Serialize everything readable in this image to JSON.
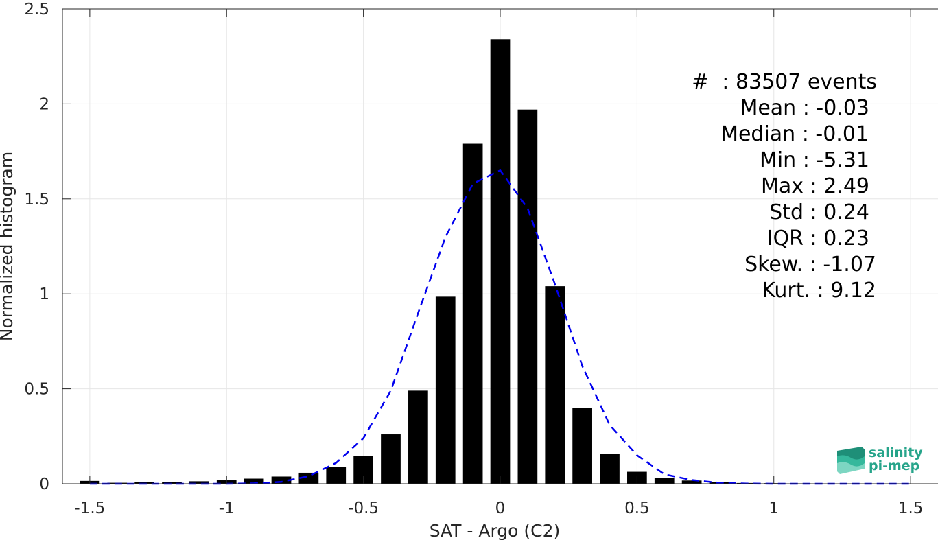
{
  "chart_data": {
    "type": "bar",
    "xlabel": "SAT - Argo (C2)",
    "ylabel": "Normalized histogram",
    "xlim": [
      -1.6,
      1.6
    ],
    "ylim": [
      0,
      2.5
    ],
    "grid": true,
    "x_ticks": [
      -1.5,
      -1,
      -0.5,
      0,
      0.5,
      1,
      1.5
    ],
    "x_tick_labels": [
      "-1.5",
      "-1",
      "-0.5",
      "0",
      "0.5",
      "1",
      "1.5"
    ],
    "y_ticks": [
      0,
      0.5,
      1,
      1.5,
      2,
      2.5
    ],
    "y_tick_labels": [
      "0",
      "0.5",
      "1",
      "1.5",
      "2",
      "2.5"
    ],
    "series": [
      {
        "type": "bar",
        "color": "#000000",
        "x": [
          -1.5,
          -1.4,
          -1.3,
          -1.2,
          -1.1,
          -1.0,
          -0.9,
          -0.8,
          -0.7,
          -0.6,
          -0.5,
          -0.4,
          -0.3,
          -0.2,
          -0.1,
          0.0,
          0.1,
          0.2,
          0.3,
          0.4,
          0.5,
          0.6,
          0.7,
          0.8,
          0.9,
          1.0,
          1.1,
          1.2,
          1.3,
          1.4,
          1.5
        ],
        "values": [
          0.015,
          0.005,
          0.008,
          0.01,
          0.013,
          0.018,
          0.027,
          0.038,
          0.058,
          0.088,
          0.147,
          0.26,
          0.49,
          0.985,
          1.79,
          2.34,
          1.97,
          1.04,
          0.4,
          0.158,
          0.063,
          0.032,
          0.017,
          0.008,
          0.004,
          0.003,
          0.002,
          0.001,
          0.001,
          0.001,
          0.001
        ]
      },
      {
        "type": "line",
        "style": "dashed",
        "color": "#0000ee",
        "x": [
          -1.5,
          -1.4,
          -1.3,
          -1.2,
          -1.1,
          -1.0,
          -0.9,
          -0.8,
          -0.7,
          -0.6,
          -0.5,
          -0.4,
          -0.3,
          -0.2,
          -0.1,
          0.0,
          0.1,
          0.2,
          0.3,
          0.4,
          0.5,
          0.6,
          0.7,
          0.8,
          0.9,
          1.0,
          1.1,
          1.2,
          1.3,
          1.4,
          1.5
        ],
        "values": [
          0.0,
          0.0,
          0.0,
          0.0,
          0.0,
          0.0,
          0.002,
          0.01,
          0.04,
          0.11,
          0.24,
          0.49,
          0.9,
          1.3,
          1.58,
          1.65,
          1.45,
          1.05,
          0.62,
          0.31,
          0.15,
          0.05,
          0.02,
          0.005,
          0.001,
          0.0,
          0.0,
          0.0,
          0.0,
          0.0,
          0.0
        ]
      }
    ]
  },
  "stats": [
    {
      "label": "#  ",
      "value": ": 83507 events"
    },
    {
      "label": "Mean ",
      "value": ": -0.03"
    },
    {
      "label": "Median ",
      "value": ": -0.01"
    },
    {
      "label": "Min ",
      "value": ": -5.31"
    },
    {
      "label": "Max ",
      "value": ": 2.49"
    },
    {
      "label": "Std ",
      "value": ": 0.24"
    },
    {
      "label": "IQR ",
      "value": ": 0.23"
    },
    {
      "label": "Skew. ",
      "value": ": -1.07"
    },
    {
      "label": "Kurt. ",
      "value": ": 9.12"
    }
  ],
  "logo": {
    "line1": "salinity",
    "line2": "pi-mep",
    "color": "#26a48a"
  }
}
